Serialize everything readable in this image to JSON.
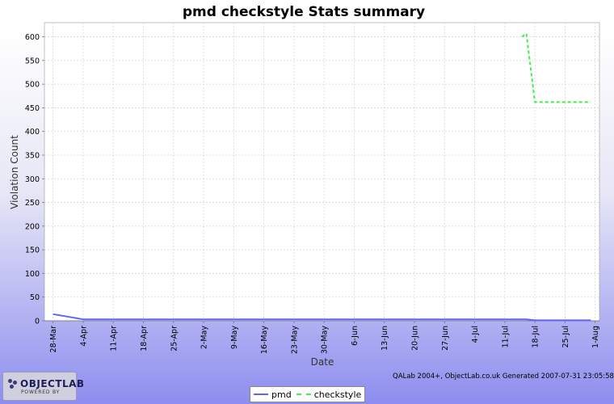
{
  "chart_data": {
    "type": "line",
    "title": "pmd checkstyle  Stats summary",
    "xlabel": "Date",
    "ylabel": "Violation Count",
    "ylim": [
      0,
      630
    ],
    "yticks": [
      0,
      50,
      100,
      150,
      200,
      250,
      300,
      350,
      400,
      450,
      500,
      550,
      600
    ],
    "xlim": [
      "2007-03-26",
      "2007-08-02"
    ],
    "x_tick_labels": [
      {
        "date": "2007-03-28",
        "label": "28-Mar"
      },
      {
        "date": "2007-04-04",
        "label": "4-Apr"
      },
      {
        "date": "2007-04-11",
        "label": "11-Apr"
      },
      {
        "date": "2007-04-18",
        "label": "18-Apr"
      },
      {
        "date": "2007-04-25",
        "label": "25-Apr"
      },
      {
        "date": "2007-05-02",
        "label": "2-May"
      },
      {
        "date": "2007-05-09",
        "label": "9-May"
      },
      {
        "date": "2007-05-16",
        "label": "16-May"
      },
      {
        "date": "2007-05-23",
        "label": "23-May"
      },
      {
        "date": "2007-05-30",
        "label": "30-May"
      },
      {
        "date": "2007-06-06",
        "label": "6-Jun"
      },
      {
        "date": "2007-06-13",
        "label": "13-Jun"
      },
      {
        "date": "2007-06-20",
        "label": "20-Jun"
      },
      {
        "date": "2007-06-27",
        "label": "27-Jun"
      },
      {
        "date": "2007-07-04",
        "label": "4-Jul"
      },
      {
        "date": "2007-07-11",
        "label": "11-Jul"
      },
      {
        "date": "2007-07-18",
        "label": "18-Jul"
      },
      {
        "date": "2007-07-25",
        "label": "25-Jul"
      },
      {
        "date": "2007-08-01",
        "label": "1-Aug"
      }
    ],
    "grid": true,
    "legend_position": "bottom-center",
    "series": [
      {
        "name": "pmd",
        "color": "#6060ff",
        "style": "solid",
        "points": [
          {
            "x": "2007-03-28",
            "y": 14
          },
          {
            "x": "2007-04-04",
            "y": 3
          },
          {
            "x": "2007-07-16",
            "y": 3
          },
          {
            "x": "2007-07-18",
            "y": 1
          },
          {
            "x": "2007-07-31",
            "y": 1
          }
        ]
      },
      {
        "name": "checkstyle",
        "color": "#44ee44",
        "style": "dashed",
        "points": [
          {
            "x": "2007-07-15",
            "y": 600
          },
          {
            "x": "2007-07-16",
            "y": 607
          },
          {
            "x": "2007-07-18",
            "y": 462
          },
          {
            "x": "2007-07-31",
            "y": 462
          }
        ]
      }
    ]
  },
  "footer": {
    "credit": "QALab 2004+, ObjectLab.co.uk  Generated 2007-07-31 23:05:58"
  },
  "logo": {
    "name": "OBJECTLAB",
    "tagline": "POWERED BY"
  }
}
